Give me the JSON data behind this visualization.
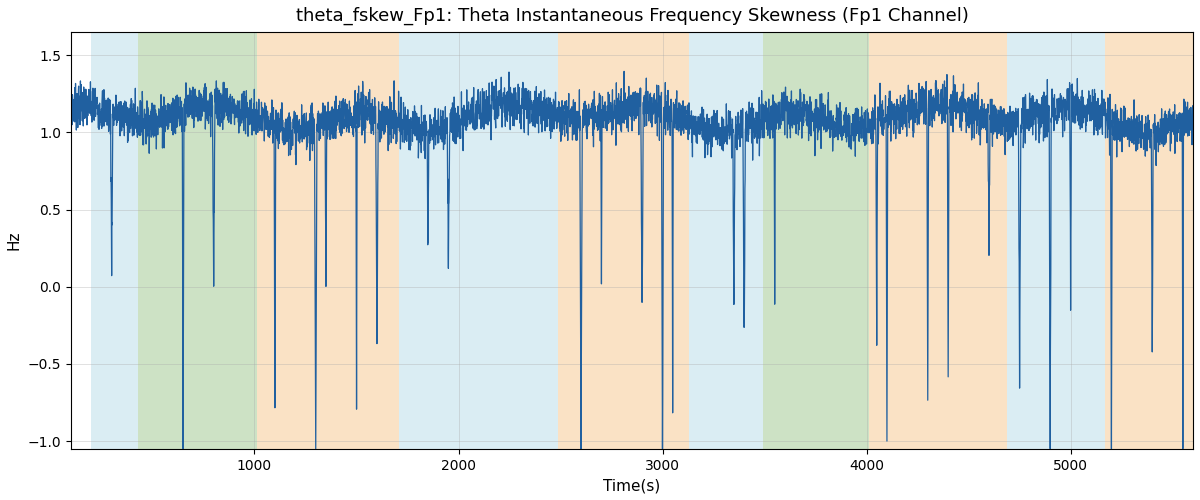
{
  "title": "theta_fskew_Fp1: Theta Instantaneous Frequency Skewness (Fp1 Channel)",
  "xlabel": "Time(s)",
  "ylabel": "Hz",
  "xlim": [
    100,
    5600
  ],
  "ylim": [
    -1.05,
    1.65
  ],
  "yticks": [
    -1.0,
    -0.5,
    0.0,
    0.5,
    1.0,
    1.5
  ],
  "xticks": [
    1000,
    2000,
    3000,
    4000,
    5000
  ],
  "line_color": "#2060a0",
  "line_width": 0.9,
  "bg_regions": [
    {
      "xmin": 200,
      "xmax": 430,
      "color": "#add8e6",
      "alpha": 0.45
    },
    {
      "xmin": 430,
      "xmax": 1010,
      "color": "#90c080",
      "alpha": 0.45
    },
    {
      "xmin": 1010,
      "xmax": 1710,
      "color": "#f5c080",
      "alpha": 0.45
    },
    {
      "xmin": 1710,
      "xmax": 2490,
      "color": "#add8e6",
      "alpha": 0.45
    },
    {
      "xmin": 2490,
      "xmax": 3130,
      "color": "#f5c080",
      "alpha": 0.45
    },
    {
      "xmin": 3130,
      "xmax": 3490,
      "color": "#add8e6",
      "alpha": 0.45
    },
    {
      "xmin": 3490,
      "xmax": 4010,
      "color": "#90c080",
      "alpha": 0.45
    },
    {
      "xmin": 4010,
      "xmax": 4690,
      "color": "#f5c080",
      "alpha": 0.45
    },
    {
      "xmin": 4690,
      "xmax": 5170,
      "color": "#add8e6",
      "alpha": 0.45
    },
    {
      "xmin": 5170,
      "xmax": 5600,
      "color": "#f5c080",
      "alpha": 0.45
    }
  ],
  "grid_color": "#aaaaaa",
  "grid_alpha": 0.5,
  "figsize": [
    12,
    5
  ],
  "dpi": 100
}
